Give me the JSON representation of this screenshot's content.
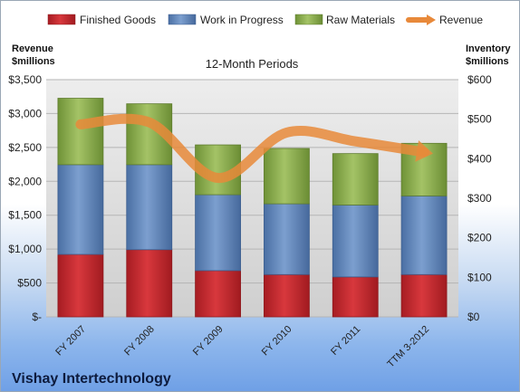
{
  "chart_data": {
    "type": "bar",
    "stacked": true,
    "title": "12-Month Periods",
    "company": "Vishay Intertechnology",
    "categories": [
      "FY 2007",
      "FY 2008",
      "FY 2009",
      "FY 2010",
      "FY 2011",
      "TTM 3-2012"
    ],
    "series": [
      {
        "name": "Finished Goods",
        "axis": "right",
        "color": "#c0272d",
        "values": [
          158,
          170,
          117,
          107,
          101,
          107
        ]
      },
      {
        "name": "Work in Progress",
        "axis": "right",
        "color": "#5a81b8",
        "values": [
          227,
          215,
          192,
          179,
          182,
          199
        ]
      },
      {
        "name": "Raw Materials",
        "axis": "right",
        "color": "#86a94a",
        "values": [
          168,
          154,
          126,
          140,
          130,
          133
        ]
      },
      {
        "name": "Revenue",
        "axis": "left",
        "type": "line",
        "color": "#e8893a",
        "values": [
          2840,
          2870,
          2050,
          2720,
          2590,
          2430
        ]
      }
    ],
    "left_axis": {
      "label": "Revenue $millions",
      "ylim": [
        0,
        3500
      ],
      "ticks": [
        "$-",
        "$500",
        "$1,000",
        "$1,500",
        "$2,000",
        "$2,500",
        "$3,000",
        "$3,500"
      ]
    },
    "right_axis": {
      "label": "Inventory $millions",
      "ylim": [
        0,
        600
      ],
      "ticks": [
        "$0",
        "$100",
        "$200",
        "$300",
        "$400",
        "$500",
        "$600"
      ]
    },
    "legend_position": "top",
    "grid": true
  }
}
